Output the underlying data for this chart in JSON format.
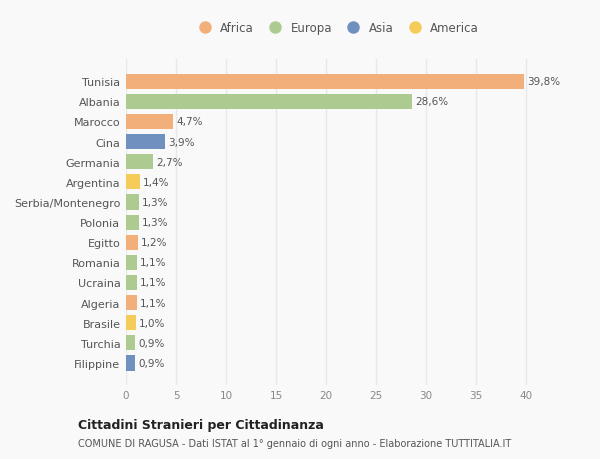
{
  "categories": [
    "Tunisia",
    "Albania",
    "Marocco",
    "Cina",
    "Germania",
    "Argentina",
    "Serbia/Montenegro",
    "Polonia",
    "Egitto",
    "Romania",
    "Ucraina",
    "Algeria",
    "Brasile",
    "Turchia",
    "Filippine"
  ],
  "values": [
    39.8,
    28.6,
    4.7,
    3.9,
    2.7,
    1.4,
    1.3,
    1.3,
    1.2,
    1.1,
    1.1,
    1.1,
    1.0,
    0.9,
    0.9
  ],
  "labels": [
    "39,8%",
    "28,6%",
    "4,7%",
    "3,9%",
    "2,7%",
    "1,4%",
    "1,3%",
    "1,3%",
    "1,2%",
    "1,1%",
    "1,1%",
    "1,1%",
    "1,0%",
    "0,9%",
    "0,9%"
  ],
  "continents": [
    "Africa",
    "Europa",
    "Africa",
    "Asia",
    "Europa",
    "America",
    "Europa",
    "Europa",
    "Africa",
    "Europa",
    "Europa",
    "Africa",
    "America",
    "Europa",
    "Asia"
  ],
  "continent_colors": {
    "Africa": "#F2AF7A",
    "Europa": "#ADCA91",
    "Asia": "#7090C0",
    "America": "#F5CC5A"
  },
  "legend_order": [
    "Africa",
    "Europa",
    "Asia",
    "America"
  ],
  "legend_colors": [
    "#F2AF7A",
    "#ADCA91",
    "#7090C0",
    "#F5CC5A"
  ],
  "xlim": [
    0,
    42
  ],
  "xticks": [
    0,
    5,
    10,
    15,
    20,
    25,
    30,
    35,
    40
  ],
  "title_bold": "Cittadini Stranieri per Cittadinanza",
  "subtitle": "COMUNE DI RAGUSA - Dati ISTAT al 1° gennaio di ogni anno - Elaborazione TUTTITALIA.IT",
  "background_color": "#f9f9f9",
  "grid_color": "#e8e8e8",
  "bar_height": 0.75
}
